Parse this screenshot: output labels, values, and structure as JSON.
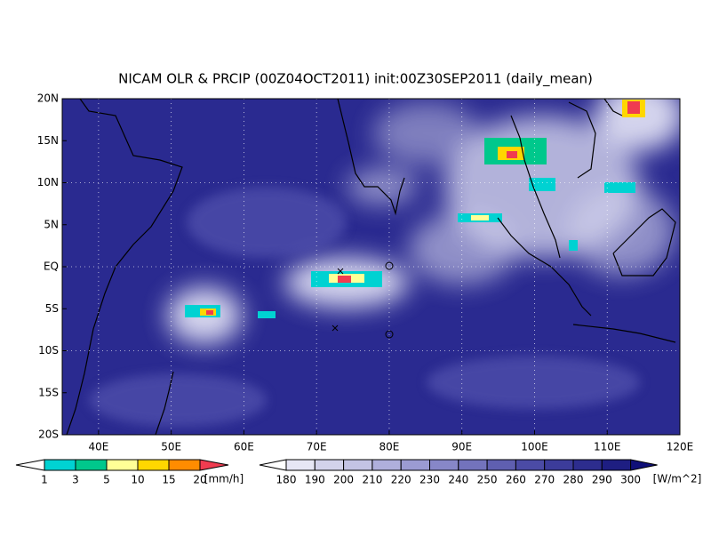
{
  "title": "NICAM OLR & PRCIP (00Z04OCT2011) init:00Z30SEP2011 (daily_mean)",
  "map": {
    "lat_labels": [
      "20N",
      "15N",
      "10N",
      "5N",
      "EQ",
      "5S",
      "10S",
      "15S",
      "20S"
    ],
    "lon_labels": [
      "40E",
      "50E",
      "60E",
      "70E",
      "80E",
      "90E",
      "100E",
      "110E",
      "120E"
    ]
  },
  "precip_legend": {
    "labels": [
      1,
      3,
      5,
      10,
      15,
      20
    ],
    "unit": "[mm/h]",
    "colors": [
      "#ffffff",
      "#00d2d2",
      "#00c88c",
      "#ffff96",
      "#ffd700",
      "#ff8c00",
      "#f03c50"
    ]
  },
  "olr_legend": {
    "labels": [
      180,
      190,
      200,
      210,
      220,
      230,
      240,
      250,
      260,
      270,
      280,
      290,
      300
    ],
    "unit": "[W/m^2]",
    "colors": [
      "#ffffff",
      "#e6e6f5",
      "#d2d2eb",
      "#c3c3e4",
      "#afafdc",
      "#9b9bd2",
      "#8787c8",
      "#7373bc",
      "#5f5fb0",
      "#4b4ba5",
      "#3c3c9a",
      "#2d2d8e",
      "#1e1e82",
      "#0f0f78"
    ]
  }
}
